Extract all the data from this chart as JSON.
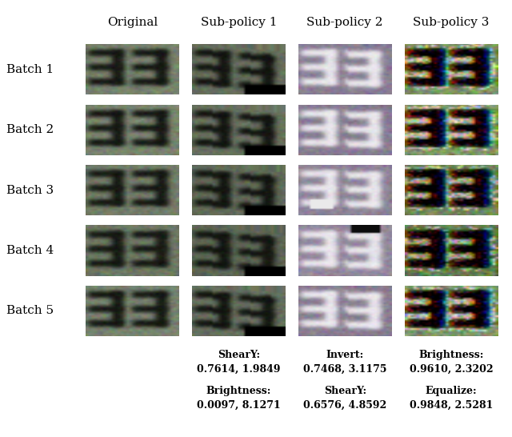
{
  "col_headers": [
    "Original",
    "Sub-policy 1",
    "Sub-policy 2",
    "Sub-policy 3"
  ],
  "row_labels": [
    "Batch 1",
    "Batch 2",
    "Batch 3",
    "Batch 4",
    "Batch 5"
  ],
  "annotations": [
    {
      "col": 1,
      "lines": [
        "ShearY:",
        "0.7614, 1.9849",
        "Brightness:",
        "0.0097, 8.1271"
      ]
    },
    {
      "col": 2,
      "lines": [
        "Invert:",
        "0.7468, 3.1175",
        "ShearY:",
        "0.6576, 4.8592"
      ]
    },
    {
      "col": 3,
      "lines": [
        "Brightness:",
        "0.9610, 2.3202",
        "Equalize:",
        "0.9848, 2.5281"
      ]
    }
  ],
  "background_color": "#ffffff",
  "header_fontsize": 11,
  "row_label_fontsize": 11,
  "annotation_fontsize": 9,
  "nrows": 5,
  "ncols": 4,
  "figsize": [
    6.4,
    5.46
  ],
  "dpi": 100
}
